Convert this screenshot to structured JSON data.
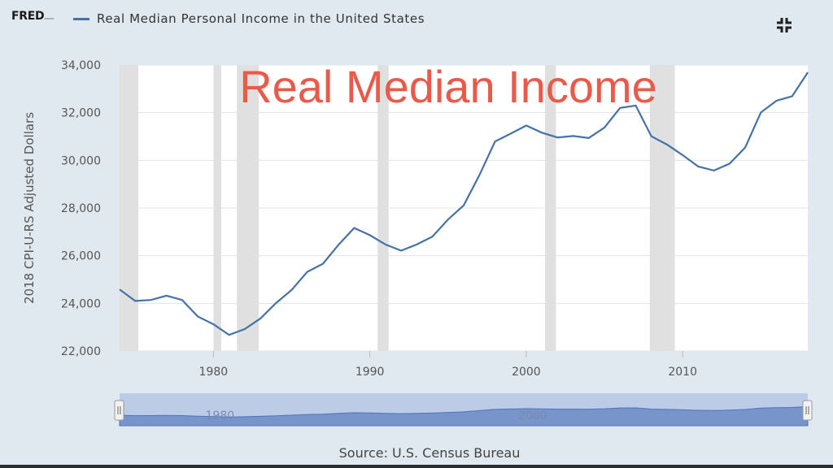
{
  "header": {
    "logo": "FRED",
    "series_title": "Real Median Personal Income in the United States",
    "fullscreen_icon": "fullscreen-exit-icon"
  },
  "overlay_caption": "Real Median Income",
  "source": "Source: U.S. Census Bureau",
  "colors": {
    "line": "#4572a7",
    "recession": "#e0e0e0",
    "overlay": "#ea5a4b",
    "background": "#e1e9f0",
    "navigator_fill": "#7895cb"
  },
  "chart_data": {
    "type": "line",
    "title": "Real Median Personal Income in the United States",
    "ylabel": "2018 CPI-U-RS Adjusted Dollars",
    "xlabel": "",
    "xlim": [
      1974,
      2018
    ],
    "ylim": [
      22000,
      34000
    ],
    "y_ticks": [
      22000,
      24000,
      26000,
      28000,
      30000,
      32000,
      34000
    ],
    "y_tick_labels": [
      "22,000",
      "24,000",
      "26,000",
      "28,000",
      "30,000",
      "32,000",
      "34,000"
    ],
    "x_ticks": [
      1980,
      1990,
      2000,
      2010
    ],
    "x_tick_labels": [
      "1980",
      "1990",
      "2000",
      "2010"
    ],
    "grid": true,
    "recessions": [
      [
        1974.0,
        1975.2
      ],
      [
        1980.0,
        1980.5
      ],
      [
        1981.5,
        1982.9
      ],
      [
        1990.5,
        1991.2
      ],
      [
        2001.2,
        2001.9
      ],
      [
        2007.9,
        2009.5
      ]
    ],
    "series": [
      {
        "x": [
          1974,
          1975,
          1976,
          1977,
          1978,
          1979,
          1980,
          1981,
          1982,
          1983,
          1984,
          1985,
          1986,
          1987,
          1988,
          1989,
          1990,
          1991,
          1992,
          1993,
          1994,
          1995,
          1996,
          1997,
          1998,
          1999,
          2000,
          2001,
          2002,
          2003,
          2004,
          2005,
          2006,
          2007,
          2008,
          2009,
          2010,
          2011,
          2012,
          2013,
          2014,
          2015,
          2016,
          2017,
          2018
        ],
        "values": [
          24580,
          24100,
          24140,
          24320,
          24140,
          23450,
          23120,
          22680,
          22920,
          23360,
          24010,
          24560,
          25320,
          25660,
          26460,
          27160,
          26860,
          26470,
          26210,
          26470,
          26800,
          27520,
          28110,
          29370,
          30790,
          31120,
          31460,
          31160,
          30960,
          31020,
          30940,
          31370,
          32200,
          32300,
          31010,
          30660,
          30220,
          29740,
          29570,
          29860,
          30540,
          32010,
          32500,
          32690,
          33690
        ]
      }
    ],
    "navigator": {
      "x_tick_labels": [
        "1980",
        "2000"
      ]
    }
  }
}
